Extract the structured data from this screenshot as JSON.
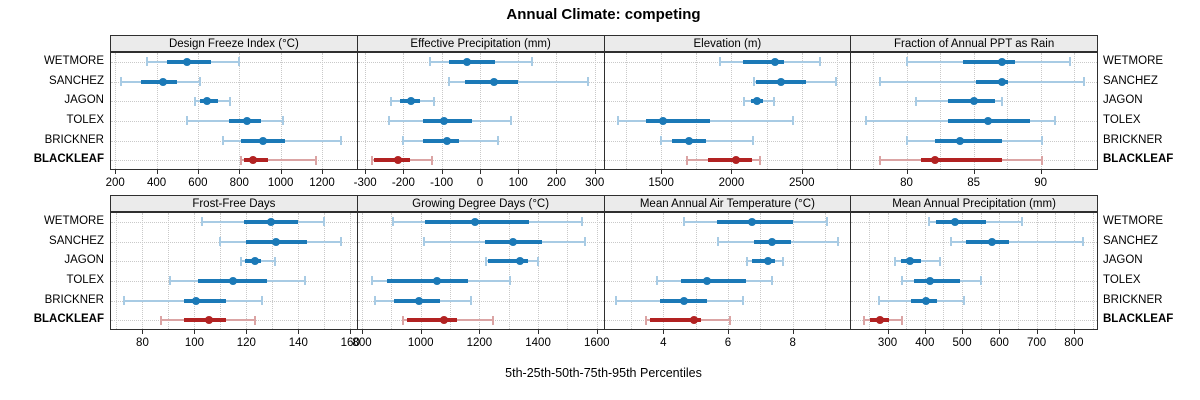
{
  "title": "Annual Climate: competing",
  "footer": "5th-25th-50th-75th-95th Percentiles",
  "colors": {
    "series_blue": "#1b79b7",
    "series_blue_light": "#a8cbe4",
    "highlight_red": "#b22222",
    "highlight_red_light": "#dba4a4",
    "grid": "#c9c9c9",
    "strip_background": "#ebebeb",
    "panel_border": "#2f2f2f",
    "text": "#000000"
  },
  "chart_data": {
    "type": "dotplot",
    "subtype": "percentile-whisker-trellis",
    "percentile_labels": [
      "5th",
      "25th",
      "50th",
      "75th",
      "95th"
    ],
    "entities": [
      "WETMORE",
      "SANCHEZ",
      "JAGON",
      "TOLEX",
      "BRICKNER",
      "BLACKLEAF"
    ],
    "highlighted_entity": "BLACKLEAF",
    "legend_position": "none",
    "grid": "dotted",
    "panels": [
      {
        "title": "Design Freeze Index (°C)",
        "row": 0,
        "col": 0,
        "xlim": [
          175,
          1368
        ],
        "ticks": [
          200,
          400,
          600,
          800,
          1000,
          1200
        ],
        "gridlines": [
          200,
          400,
          600,
          800,
          1000,
          1200
        ],
        "values": {
          "WETMORE": [
            355,
            450,
            545,
            665,
            800
          ],
          "SANCHEZ": [
            230,
            325,
            430,
            500,
            610
          ],
          "JAGON": [
            585,
            610,
            645,
            695,
            755
          ],
          "TOLEX": [
            545,
            750,
            835,
            905,
            1010
          ],
          "BRICKNER": [
            720,
            810,
            915,
            1020,
            1290
          ],
          "BLACKLEAF": [
            810,
            822,
            868,
            940,
            1170
          ]
        }
      },
      {
        "title": "Effective Precipitation (mm)",
        "row": 0,
        "col": 1,
        "xlim": [
          -322,
          323
        ],
        "ticks": [
          -300,
          -200,
          -100,
          0,
          100,
          200,
          300
        ],
        "gridlines": [
          -300,
          -200,
          -100,
          0,
          100,
          200,
          300
        ],
        "values": {
          "WETMORE": [
            -130,
            -80,
            -35,
            40,
            135
          ],
          "SANCHEZ": [
            -80,
            -40,
            38,
            100,
            283
          ],
          "JAGON": [
            -232,
            -209,
            -180,
            -156,
            -119
          ],
          "TOLEX": [
            -239,
            -148,
            -93,
            -22,
            80
          ],
          "BRICKNER": [
            -200,
            -148,
            -85,
            -55,
            48
          ],
          "BLACKLEAF": [
            -283,
            -278,
            -215,
            -183,
            -126
          ]
        }
      },
      {
        "title": "Elevation (m)",
        "row": 0,
        "col": 2,
        "xlim": [
          1090,
          2845
        ],
        "ticks": [
          1500,
          2000,
          2500
        ],
        "gridlines": [
          1250,
          1500,
          1750,
          2000,
          2250,
          2500,
          2750
        ],
        "values": {
          "WETMORE": [
            1920,
            2080,
            2310,
            2375,
            2630
          ],
          "SANCHEZ": [
            2160,
            2172,
            2355,
            2530,
            2745
          ],
          "JAGON": [
            2090,
            2140,
            2185,
            2225,
            2305
          ],
          "TOLEX": [
            1190,
            1390,
            1512,
            1845,
            2440
          ],
          "BRICKNER": [
            1500,
            1578,
            1700,
            1820,
            2150
          ],
          "BLACKLEAF": [
            1685,
            1830,
            2032,
            2145,
            2205
          ]
        }
      },
      {
        "title": "Fraction of Annual PPT as Rain",
        "row": 0,
        "col": 3,
        "xlim": [
          75.8,
          94.2
        ],
        "ticks": [
          80,
          85,
          90
        ],
        "gridlines": [
          77.5,
          80,
          82.5,
          85,
          87.5,
          90,
          92.5
        ],
        "values": {
          "WETMORE": [
            80,
            84.2,
            87.1,
            88.1,
            92.2
          ],
          "SANCHEZ": [
            78,
            85.2,
            87.1,
            87.6,
            93.2
          ],
          "JAGON": [
            80.7,
            83.1,
            85.0,
            86.6,
            87.1
          ],
          "TOLEX": [
            77,
            83.1,
            86.1,
            89.2,
            91.1
          ],
          "BRICKNER": [
            80,
            82.1,
            84.0,
            87.1,
            90.1
          ],
          "BLACKLEAF": [
            78,
            81.1,
            82.1,
            87.1,
            90.1
          ]
        }
      },
      {
        "title": "Frost-Free Days",
        "row": 1,
        "col": 0,
        "xlim": [
          67.5,
          162.5
        ],
        "ticks": [
          80,
          100,
          120,
          140,
          160
        ],
        "gridlines": [
          70,
          80,
          90,
          100,
          110,
          120,
          130,
          140,
          150,
          160
        ],
        "values": {
          "WETMORE": [
            103,
            119,
            129.5,
            140,
            150
          ],
          "SANCHEZ": [
            110,
            120,
            131.5,
            143.5,
            156.5
          ],
          "JAGON": [
            118,
            119.5,
            123.5,
            125.5,
            131
          ],
          "TOLEX": [
            90.5,
            101.5,
            115,
            128,
            142.5
          ],
          "BRICKNER": [
            73,
            96,
            100.5,
            112,
            126
          ],
          "BLACKLEAF": [
            87,
            96,
            105.5,
            112,
            123.5
          ]
        }
      },
      {
        "title": "Growing Degree Days (°C)",
        "row": 1,
        "col": 1,
        "xlim": [
          782,
          1623
        ],
        "ticks": [
          800,
          1000,
          1200,
          1400,
          1600
        ],
        "gridlines": [
          800,
          900,
          1000,
          1100,
          1200,
          1300,
          1400,
          1500,
          1600
        ],
        "values": {
          "WETMORE": [
            905,
            1015,
            1185,
            1370,
            1550
          ],
          "SANCHEZ": [
            1010,
            1220,
            1315,
            1415,
            1560
          ],
          "JAGON": [
            1222,
            1230,
            1340,
            1365,
            1400
          ],
          "TOLEX": [
            835,
            885,
            1055,
            1160,
            1305
          ],
          "BRICKNER": [
            845,
            910,
            995,
            1065,
            1170
          ],
          "BLACKLEAF": [
            940,
            952,
            1078,
            1122,
            1248
          ]
        }
      },
      {
        "title": "Mean Annual Air Temperature (°C)",
        "row": 1,
        "col": 2,
        "xlim": [
          2.15,
          9.78
        ],
        "ticks": [
          4,
          6,
          8
        ],
        "gridlines": [
          3,
          4,
          5,
          6,
          7,
          8,
          9
        ],
        "values": {
          "WETMORE": [
            4.65,
            5.65,
            6.75,
            8.0,
            9.05
          ],
          "SANCHEZ": [
            5.7,
            6.8,
            7.35,
            7.95,
            9.4
          ],
          "JAGON": [
            6.6,
            6.75,
            7.25,
            7.45,
            7.7
          ],
          "TOLEX": [
            3.8,
            4.55,
            5.35,
            6.55,
            7.35
          ],
          "BRICKNER": [
            2.55,
            3.9,
            4.65,
            5.35,
            6.45
          ],
          "BLACKLEAF": [
            3.45,
            3.6,
            4.95,
            5.15,
            6.05
          ]
        }
      },
      {
        "title": "Mean Annual Precipitation (mm)",
        "row": 1,
        "col": 3,
        "xlim": [
          200,
          862
        ],
        "ticks": [
          300,
          400,
          500,
          600,
          700,
          800
        ],
        "gridlines": [
          250,
          300,
          350,
          400,
          450,
          500,
          550,
          600,
          650,
          700,
          750,
          800,
          850
        ],
        "values": {
          "WETMORE": [
            410,
            430,
            480,
            565,
            660
          ],
          "SANCHEZ": [
            470,
            510,
            580,
            625,
            825
          ],
          "JAGON": [
            320,
            335,
            360,
            390,
            440
          ],
          "TOLEX": [
            340,
            370,
            415,
            495,
            550
          ],
          "BRICKNER": [
            277,
            362,
            402,
            434,
            505
          ],
          "BLACKLEAF": [
            237,
            253,
            280,
            305,
            340
          ]
        }
      }
    ]
  }
}
